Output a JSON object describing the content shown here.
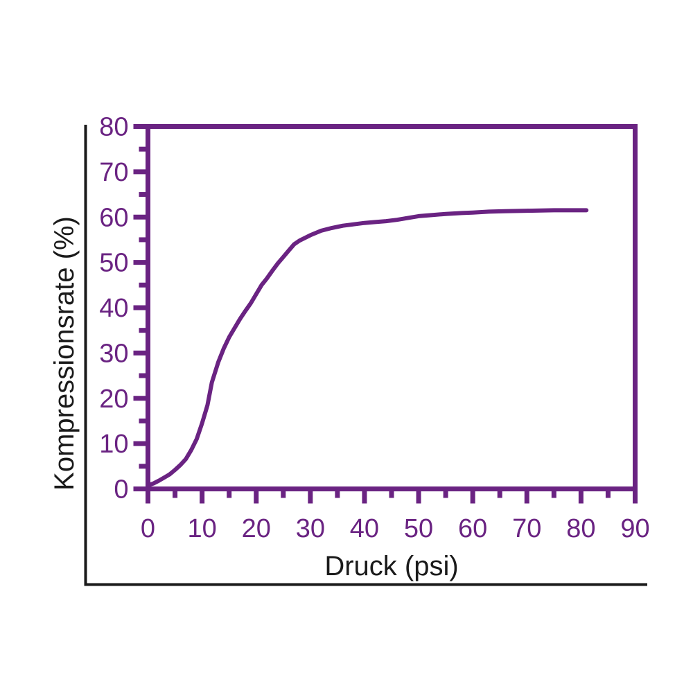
{
  "figure": {
    "background": "#ffffff",
    "border_color": "#1a1a1a"
  },
  "chart_data": {
    "type": "line",
    "title": "",
    "xlabel": "Druck (psi)",
    "ylabel": "Kompressionsrate (%)",
    "xlim": [
      0,
      90
    ],
    "ylim": [
      0,
      80
    ],
    "grid": false,
    "legend": false,
    "x_major_ticks": [
      0,
      10,
      20,
      30,
      40,
      50,
      60,
      70,
      80,
      90
    ],
    "x_minor_ticks": [
      5,
      15,
      25,
      35,
      45,
      55,
      65,
      75,
      85
    ],
    "y_major_ticks": [
      0,
      10,
      20,
      30,
      40,
      50,
      60,
      70,
      80
    ],
    "y_minor_ticks": [
      5,
      15,
      25,
      35,
      45,
      55,
      65,
      75
    ],
    "axis_color": "#6a2382",
    "line_color": "#6a2382",
    "tick_label_color": "#6a2382",
    "axis_title_color": "#1a1a1a",
    "series": [
      {
        "name": "Kompressionsrate",
        "points": [
          [
            0,
            0.8
          ],
          [
            1,
            1.2
          ],
          [
            2,
            1.8
          ],
          [
            3,
            2.5
          ],
          [
            4,
            3.2
          ],
          [
            5,
            4.2
          ],
          [
            6,
            5.3
          ],
          [
            7,
            6.6
          ],
          [
            8,
            8.6
          ],
          [
            9,
            11
          ],
          [
            10,
            14.5
          ],
          [
            11,
            18.5
          ],
          [
            11.8,
            23.5
          ],
          [
            13,
            28
          ],
          [
            14,
            31
          ],
          [
            15,
            33.5
          ],
          [
            16,
            35.5
          ],
          [
            17,
            37.5
          ],
          [
            18,
            39.3
          ],
          [
            19,
            41
          ],
          [
            20,
            43
          ],
          [
            21,
            45
          ],
          [
            22,
            46.5
          ],
          [
            23,
            48.2
          ],
          [
            24,
            49.8
          ],
          [
            25,
            51.2
          ],
          [
            26,
            52.6
          ],
          [
            27,
            54
          ],
          [
            28,
            54.8
          ],
          [
            29,
            55.4
          ],
          [
            30,
            56
          ],
          [
            32,
            57
          ],
          [
            34,
            57.6
          ],
          [
            36,
            58.1
          ],
          [
            38,
            58.4
          ],
          [
            40,
            58.7
          ],
          [
            42,
            58.9
          ],
          [
            44,
            59.1
          ],
          [
            46,
            59.4
          ],
          [
            48,
            59.8
          ],
          [
            50,
            60.2
          ],
          [
            52,
            60.4
          ],
          [
            55,
            60.7
          ],
          [
            58,
            60.9
          ],
          [
            60,
            61
          ],
          [
            63,
            61.2
          ],
          [
            66,
            61.3
          ],
          [
            70,
            61.4
          ],
          [
            75,
            61.5
          ],
          [
            81,
            61.5
          ]
        ]
      }
    ]
  }
}
